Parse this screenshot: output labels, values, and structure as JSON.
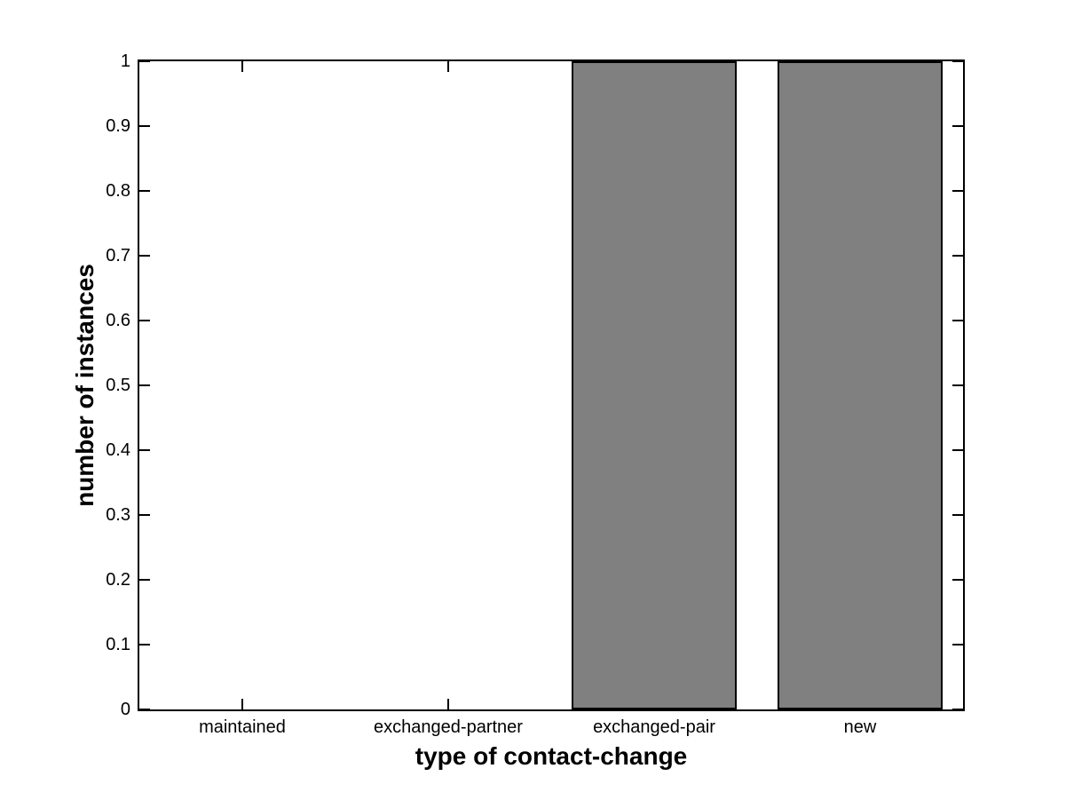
{
  "chart_data": {
    "type": "bar",
    "categories": [
      "maintained",
      "exchanged-partner",
      "exchanged-pair",
      "new"
    ],
    "values": [
      0,
      0,
      1,
      1
    ],
    "title": "",
    "xlabel": "type of contact-change",
    "ylabel": "number of instances",
    "ylim": [
      0,
      1
    ],
    "yticks": [
      0,
      0.1,
      0.2,
      0.3,
      0.4,
      0.5,
      0.6,
      0.7,
      0.8,
      0.9,
      1
    ],
    "ytick_labels": [
      "0",
      "0.1",
      "0.2",
      "0.3",
      "0.4",
      "0.5",
      "0.6",
      "0.7",
      "0.8",
      "0.9",
      "1"
    ],
    "bar_width_fraction": 0.8,
    "bar_color": "#808080",
    "bar_edge_color": "#000000",
    "axis_color": "#000000",
    "background_color": "#ffffff",
    "grid": false,
    "box": true,
    "tick_direction": "in",
    "legend": null
  }
}
